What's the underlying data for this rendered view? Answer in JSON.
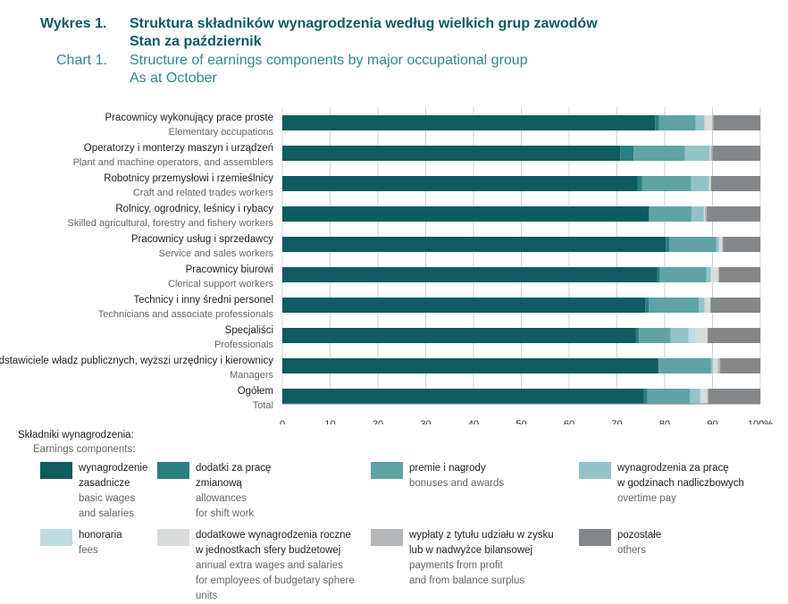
{
  "title": {
    "pl_label": "Wykres 1.",
    "pl_line1": "Struktura składników wynagrodzenia według wielkich grup zawodów",
    "pl_line2": "Stan za październik",
    "en_label": "Chart 1.",
    "en_line1": "Structure of earnings components by major occupational group",
    "en_line2": "As at October"
  },
  "legend": {
    "title_pl": "Składniki wynagrodzenia:",
    "title_en": "Earnings components:",
    "items": [
      {
        "pl1": "wynagrodzenie",
        "pl2": "zasadnicze",
        "en1": "basic wages",
        "en2": "and salaries"
      },
      {
        "pl1": "dodatki za pracę",
        "pl2": "zmianową",
        "en1": "allowances",
        "en2": "for shift work"
      },
      {
        "pl1": "premie i nagrody",
        "pl2": "",
        "en1": "bonuses and awards",
        "en2": ""
      },
      {
        "pl1": "wynagrodzenia za pracę",
        "pl2": "w godzinach nadliczbowych",
        "en1": "overtime pay",
        "en2": ""
      },
      {
        "pl1": "honoraria",
        "pl2": "",
        "en1": "fees",
        "en2": ""
      },
      {
        "pl1": "dodatkowe wynagrodzenia roczne",
        "pl2": "w jednostkach sfery budżetowej",
        "en1": "annual extra wages and salaries",
        "en2": "for employees of budgetary sphere units"
      },
      {
        "pl1": "wypłaty z tytułu udziału w zysku",
        "pl2": "lub w nadwyżce bilansowej",
        "en1": "payments from profit",
        "en2": "and from balance surplus"
      },
      {
        "pl1": "pozostałe",
        "pl2": "",
        "en1": "others",
        "en2": ""
      }
    ]
  },
  "chart_data": {
    "type": "bar",
    "orientation": "horizontal",
    "stacked": true,
    "xlim": [
      0,
      100
    ],
    "x_ticks": [
      "0",
      "10",
      "20",
      "30",
      "40",
      "50",
      "60",
      "70",
      "80",
      "90",
      "100%"
    ],
    "categories": [
      {
        "pl": "Pracownicy wykonujący prace proste",
        "en": "Elementary occupations"
      },
      {
        "pl": "Operatorzy i monterzy maszyn i urządzeń",
        "en": "Plant and machine operators, and assemblers"
      },
      {
        "pl": "Robotnicy przemysłowi i rzemieślnicy",
        "en": "Craft and related trades workers"
      },
      {
        "pl": "Rolnicy, ogrodnicy, leśnicy i rybacy",
        "en": "Skilled agricultural, forestry and fishery workers"
      },
      {
        "pl": "Pracownicy usług i sprzedawcy",
        "en": "Service and sales workers"
      },
      {
        "pl": "Pracownicy biurowi",
        "en": "Clerical support workers"
      },
      {
        "pl": "Technicy i inny średni personel",
        "en": "Technicians and associate professionals"
      },
      {
        "pl": "Specjaliści",
        "en": "Professionals"
      },
      {
        "pl": "Przedstawiciele władz publicznych, wyższi urzędnicy i kierownicy",
        "en": "Managers"
      },
      {
        "pl": "Ogółem",
        "en": "Total"
      }
    ],
    "series": [
      {
        "name": "wynagrodzenie zasadnicze / basic wages and salaries",
        "color": "#0e5c60",
        "values": [
          78.0,
          70.7,
          74.3,
          76.7,
          80.2,
          78.4,
          75.9,
          74.0,
          78.6,
          75.6
        ]
      },
      {
        "name": "dodatki za pracę zmianową / allowances for shift work",
        "color": "#2a7f80",
        "values": [
          0.8,
          2.8,
          1.0,
          0.1,
          0.8,
          0.6,
          0.8,
          0.6,
          0.1,
          0.8
        ]
      },
      {
        "name": "premie i nagrody / bonuses and awards",
        "color": "#5fa3a5",
        "values": [
          7.7,
          10.7,
          10.2,
          8.8,
          9.8,
          9.7,
          10.4,
          6.6,
          11.0,
          8.9
        ]
      },
      {
        "name": "wynagrodzenia za pracę w godzinach nadliczbowych / overtime pay",
        "color": "#93c3c6",
        "values": [
          1.8,
          5.2,
          3.8,
          2.6,
          0.5,
          0.9,
          1.2,
          3.8,
          0.3,
          2.1
        ]
      },
      {
        "name": "honoraria / fees",
        "color": "#bcdcdf",
        "values": [
          0.1,
          0.1,
          0.1,
          0.1,
          0.1,
          0.2,
          0.3,
          1.5,
          0.3,
          0.4
        ]
      },
      {
        "name": "dodatkowe wynagrodzenia roczne w jednostkach sfery budżetowej / annual extra wages and salaries for employees of budgetary sphere units",
        "color": "#dadcdc",
        "values": [
          1.5,
          0.1,
          0.2,
          0.1,
          0.6,
          1.4,
          0.9,
          2.4,
          0.8,
          1.1
        ]
      },
      {
        "name": "wypłaty z tytułu udziału w zysku lub w nadwyżce bilansowej / payments from profit and from balance surplus",
        "color": "#b6b7b8",
        "values": [
          0.3,
          0.4,
          0.1,
          0.4,
          0.2,
          0.2,
          0.1,
          0.1,
          0.5,
          0.2
        ]
      },
      {
        "name": "pozostałe / others",
        "color": "#848789",
        "values": [
          9.8,
          10.0,
          10.3,
          11.2,
          7.8,
          8.6,
          10.4,
          11.0,
          8.4,
          10.9
        ]
      }
    ]
  }
}
